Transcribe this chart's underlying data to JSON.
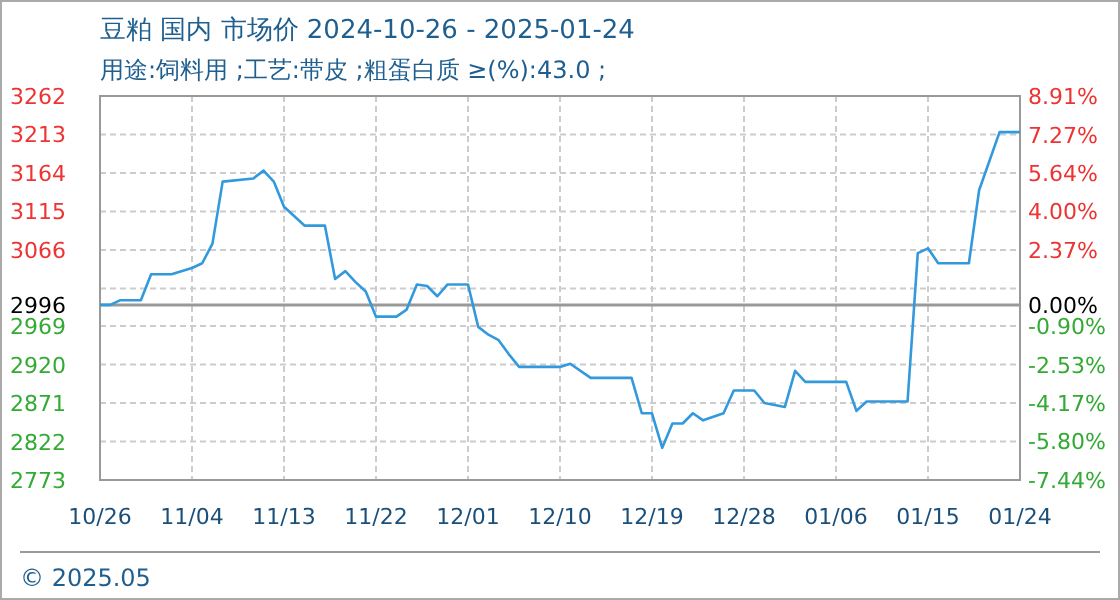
{
  "chart_data": {
    "type": "line",
    "title": "豆粕 国内 市场价 2024-10-26 - 2025-01-24",
    "subtitle": "用途:饲料用 ;工艺:带皮 ;粗蛋白质 ≥(%):43.0 ;",
    "x": [
      "2024-10-26",
      "2024-10-27",
      "2024-10-28",
      "2024-10-30",
      "2024-10-31",
      "2024-11-02",
      "2024-11-04",
      "2024-11-05",
      "2024-11-06",
      "2024-11-07",
      "2024-11-10",
      "2024-11-11",
      "2024-11-12",
      "2024-11-13",
      "2024-11-15",
      "2024-11-17",
      "2024-11-18",
      "2024-11-19",
      "2024-11-20",
      "2024-11-21",
      "2024-11-22",
      "2024-11-24",
      "2024-11-25",
      "2024-11-26",
      "2024-11-27",
      "2024-11-28",
      "2024-11-29",
      "2024-12-01",
      "2024-12-02",
      "2024-12-03",
      "2024-12-04",
      "2024-12-05",
      "2024-12-06",
      "2024-12-10",
      "2024-12-11",
      "2024-12-13",
      "2024-12-17",
      "2024-12-18",
      "2024-12-19",
      "2024-12-20",
      "2024-12-21",
      "2024-12-22",
      "2024-12-23",
      "2024-12-24",
      "2024-12-26",
      "2024-12-27",
      "2024-12-29",
      "2024-12-30",
      "2025-01-01",
      "2025-01-02",
      "2025-01-03",
      "2025-01-07",
      "2025-01-08",
      "2025-01-09",
      "2025-01-13",
      "2025-01-14",
      "2025-01-15",
      "2025-01-16",
      "2025-01-19",
      "2025-01-20",
      "2025-01-22",
      "2025-01-24"
    ],
    "series": [
      {
        "color": "#3399dd",
        "values": [
          2996,
          2996,
          3002,
          3002,
          3035,
          3035,
          3043,
          3049,
          3074,
          3153,
          3157,
          3167,
          3153,
          3121,
          3097,
          3097,
          3029,
          3039,
          3025,
          3013,
          2981,
          2981,
          2990,
          3022,
          3020,
          3007,
          3022,
          3022,
          2968,
          2958,
          2951,
          2933,
          2917,
          2917,
          2921,
          2903,
          2903,
          2858,
          2858,
          2814,
          2845,
          2845,
          2858,
          2849,
          2858,
          2887,
          2887,
          2871,
          2866,
          2912,
          2898,
          2898,
          2861,
          2873,
          2873,
          3062,
          3068,
          3049,
          3049,
          3142,
          3216,
          3216
        ]
      }
    ],
    "xlim": [
      "2024-10-26",
      "2025-01-24"
    ],
    "xticks": [
      {
        "value": "2024-10-26",
        "label": "10/26"
      },
      {
        "value": "2024-11-04",
        "label": "11/04"
      },
      {
        "value": "2024-11-13",
        "label": "11/13"
      },
      {
        "value": "2024-11-22",
        "label": "11/22"
      },
      {
        "value": "2024-12-01",
        "label": "12/01"
      },
      {
        "value": "2024-12-10",
        "label": "12/10"
      },
      {
        "value": "2024-12-19",
        "label": "12/19"
      },
      {
        "value": "2024-12-28",
        "label": "12/28"
      },
      {
        "value": "2025-01-06",
        "label": "01/06"
      },
      {
        "value": "2025-01-15",
        "label": "01/15"
      },
      {
        "value": "2025-01-24",
        "label": "01/24"
      }
    ],
    "ylim": [
      2773,
      3262
    ],
    "yticks": [
      2773,
      2822,
      2871,
      2920,
      2969,
      2996,
      {
        "value": 3017,
        "label": null
      },
      3066,
      3115,
      3164,
      3213,
      3262
    ],
    "y2lim": [
      -7.44,
      8.91
    ],
    "y2ticks": [
      {
        "value": -7.44,
        "label": "-7.44%"
      },
      {
        "value": -5.8,
        "label": "-5.80%"
      },
      {
        "value": -4.17,
        "label": "-4.17%"
      },
      {
        "value": -2.53,
        "label": "-2.53%"
      },
      {
        "value": -0.9,
        "label": "-0.90%"
      },
      {
        "value": 0,
        "label": "0.00%"
      },
      {
        "value": 2.37,
        "label": "2.37%"
      },
      {
        "value": 4.0,
        "label": "4.00%"
      },
      {
        "value": 5.64,
        "label": "5.64%"
      },
      {
        "value": 7.27,
        "label": "7.27%"
      },
      {
        "value": 8.91,
        "label": "8.91%"
      }
    ],
    "ref_lines": [
      {
        "axis": "y",
        "value": 2996,
        "color": "#999999"
      }
    ],
    "grid": true,
    "annotations": [
      "© 2025.05"
    ]
  }
}
